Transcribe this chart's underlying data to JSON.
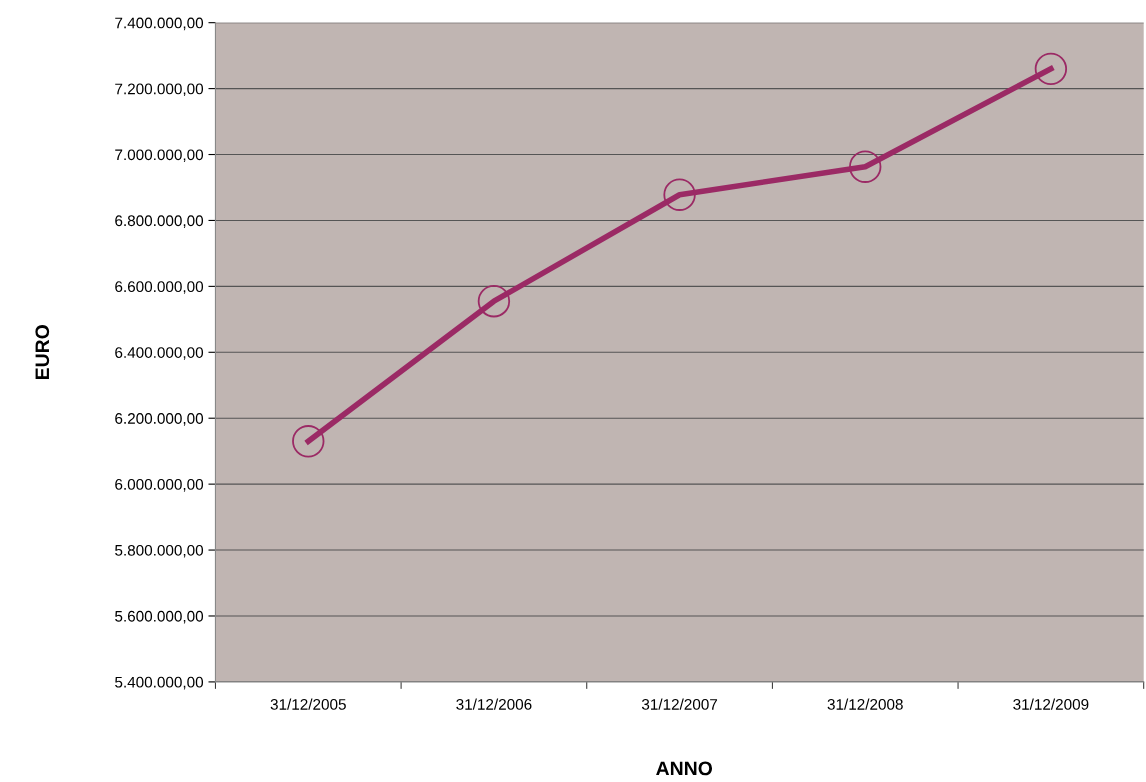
{
  "chart_data": {
    "type": "line",
    "xlabel": "ANNO",
    "ylabel": "EURO",
    "categories": [
      "31/12/2005",
      "31/12/2006",
      "31/12/2007",
      "31/12/2008",
      "31/12/2009"
    ],
    "series": [
      {
        "color": "#9b2a65",
        "values": [
          6130000,
          6555000,
          6878000,
          6963000,
          7260000
        ]
      }
    ],
    "ylim": [
      5400000,
      7400000
    ],
    "yticks": [
      {
        "value": 5400000,
        "label": "5.400.000,00"
      },
      {
        "value": 5600000,
        "label": "5.600.000,00"
      },
      {
        "value": 5800000,
        "label": "5.800.000,00"
      },
      {
        "value": 6000000,
        "label": "6.000.000,00"
      },
      {
        "value": 6200000,
        "label": "6.200.000,00"
      },
      {
        "value": 6400000,
        "label": "6.400.000,00"
      },
      {
        "value": 6600000,
        "label": "6.600.000,00"
      },
      {
        "value": 6800000,
        "label": "6.800.000,00"
      },
      {
        "value": 7000000,
        "label": "7.000.000,00"
      },
      {
        "value": 7200000,
        "label": "7.200.000,00"
      },
      {
        "value": 7400000,
        "label": "7.400.000,00"
      }
    ],
    "grid": "y",
    "marker": "circle",
    "line_style": "solid",
    "legend": false
  }
}
